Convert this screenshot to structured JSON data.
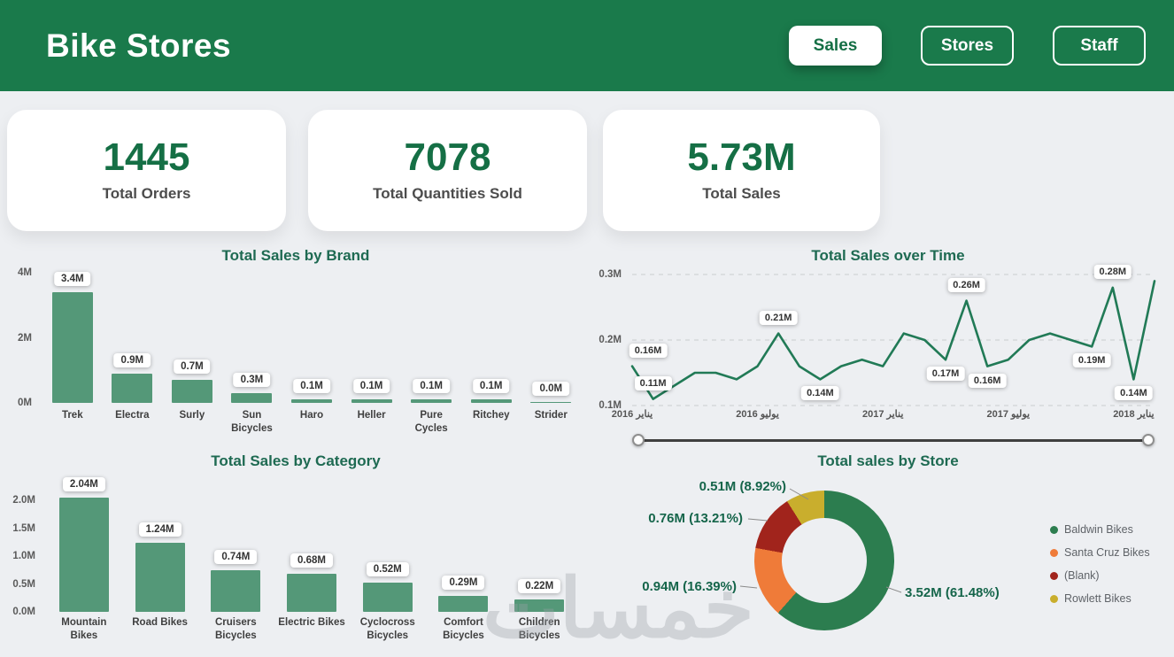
{
  "app": {
    "title": "Bike Stores"
  },
  "nav": {
    "sales": "Sales",
    "stores": "Stores",
    "staff": "Staff"
  },
  "kpis": [
    {
      "value": "1445",
      "label": "Total Orders"
    },
    {
      "value": "7078",
      "label": "Total Quantities Sold"
    },
    {
      "value": "5.73M",
      "label": "Total Sales"
    }
  ],
  "watermark": "خمسات",
  "colors": {
    "header_green": "#1a7a4b",
    "bar_green": "#549878",
    "line_green": "#217a56",
    "background": "#edeff2",
    "label_pill_bg": "#ffffff"
  },
  "chart_data": [
    {
      "id": "brand",
      "type": "bar",
      "title": "Total Sales by Brand",
      "color": "#549878",
      "categories": [
        "Trek",
        "Electra",
        "Surly",
        "Sun Bicycles",
        "Haro",
        "Heller",
        "Pure Cycles",
        "Ritchey",
        "Strider"
      ],
      "values": [
        3.4,
        0.9,
        0.7,
        0.3,
        0.1,
        0.1,
        0.1,
        0.1,
        0.0
      ],
      "value_labels": [
        "3.4M",
        "0.9M",
        "0.7M",
        "0.3M",
        "0.1M",
        "0.1M",
        "0.1M",
        "0.1M",
        "0.0M"
      ],
      "ymax": 4,
      "yticks": [
        {
          "v": 4,
          "label": "4M"
        },
        {
          "v": 2,
          "label": "2M"
        },
        {
          "v": 0,
          "label": "0M"
        }
      ]
    },
    {
      "id": "time",
      "type": "line",
      "title": "Total Sales over Time",
      "color": "#217a56",
      "ymin": 0.1,
      "ymax": 0.3,
      "values": [
        0.16,
        0.11,
        0.13,
        0.15,
        0.15,
        0.14,
        0.16,
        0.21,
        0.16,
        0.14,
        0.16,
        0.17,
        0.16,
        0.21,
        0.2,
        0.17,
        0.26,
        0.16,
        0.17,
        0.2,
        0.21,
        0.2,
        0.19,
        0.28,
        0.14,
        0.29
      ],
      "yticks": [
        {
          "v": 0.3,
          "label": "0.3M"
        },
        {
          "v": 0.2,
          "label": "0.2M"
        },
        {
          "v": 0.1,
          "label": "0.1M"
        }
      ],
      "xticks": [
        {
          "i": 0,
          "label": "يناير 2016"
        },
        {
          "i": 6,
          "label": "يوليو 2016"
        },
        {
          "i": 12,
          "label": "يناير 2017"
        },
        {
          "i": 18,
          "label": "يوليو 2017"
        },
        {
          "i": 24,
          "label": "يناير 2018"
        }
      ],
      "point_labels": [
        {
          "i": 0,
          "text": "0.16M",
          "pos": "above"
        },
        {
          "i": 1,
          "text": "0.11M",
          "pos": "above"
        },
        {
          "i": 7,
          "text": "0.21M",
          "pos": "above"
        },
        {
          "i": 9,
          "text": "0.14M",
          "pos": "below"
        },
        {
          "i": 15,
          "text": "0.17M",
          "pos": "below"
        },
        {
          "i": 16,
          "text": "0.26M",
          "pos": "above"
        },
        {
          "i": 17,
          "text": "0.16M",
          "pos": "below"
        },
        {
          "i": 22,
          "text": "0.19M",
          "pos": "below"
        },
        {
          "i": 23,
          "text": "0.28M",
          "pos": "above"
        },
        {
          "i": 24,
          "text": "0.14M",
          "pos": "below"
        }
      ]
    },
    {
      "id": "category",
      "type": "bar",
      "title": "Total Sales by Category",
      "color": "#549878",
      "categories": [
        "Mountain Bikes",
        "Road Bikes",
        "Cruisers Bicycles",
        "Electric Bikes",
        "Cyclocross Bicycles",
        "Comfort Bicycles",
        "Children Bicycles"
      ],
      "values": [
        2.04,
        1.24,
        0.74,
        0.68,
        0.52,
        0.29,
        0.22
      ],
      "value_labels": [
        "2.04M",
        "1.24M",
        "0.74M",
        "0.68M",
        "0.52M",
        "0.29M",
        "0.22M"
      ],
      "ymax": 2.0,
      "yticks": [
        {
          "v": 2.0,
          "label": "2.0M"
        },
        {
          "v": 1.5,
          "label": "1.5M"
        },
        {
          "v": 1.0,
          "label": "1.0M"
        },
        {
          "v": 0.5,
          "label": "0.5M"
        },
        {
          "v": 0.0,
          "label": "0.0M"
        }
      ]
    },
    {
      "id": "store",
      "type": "donut",
      "title": "Total sales by Store",
      "slices": [
        {
          "name": "Baldwin Bikes",
          "value": 3.52,
          "pct": 61.48,
          "label": "3.52M (61.48%)",
          "color": "#2c7d4f"
        },
        {
          "name": "Santa Cruz Bikes",
          "value": 0.94,
          "pct": 16.39,
          "label": "0.94M (16.39%)",
          "color": "#ef7b39"
        },
        {
          "name": "(Blank)",
          "value": 0.76,
          "pct": 13.21,
          "label": "0.76M (13.21%)",
          "color": "#a1241c"
        },
        {
          "name": "Rowlett Bikes",
          "value": 0.51,
          "pct": 8.92,
          "label": "0.51M (8.92%)",
          "color": "#c9ae2d"
        }
      ]
    }
  ]
}
